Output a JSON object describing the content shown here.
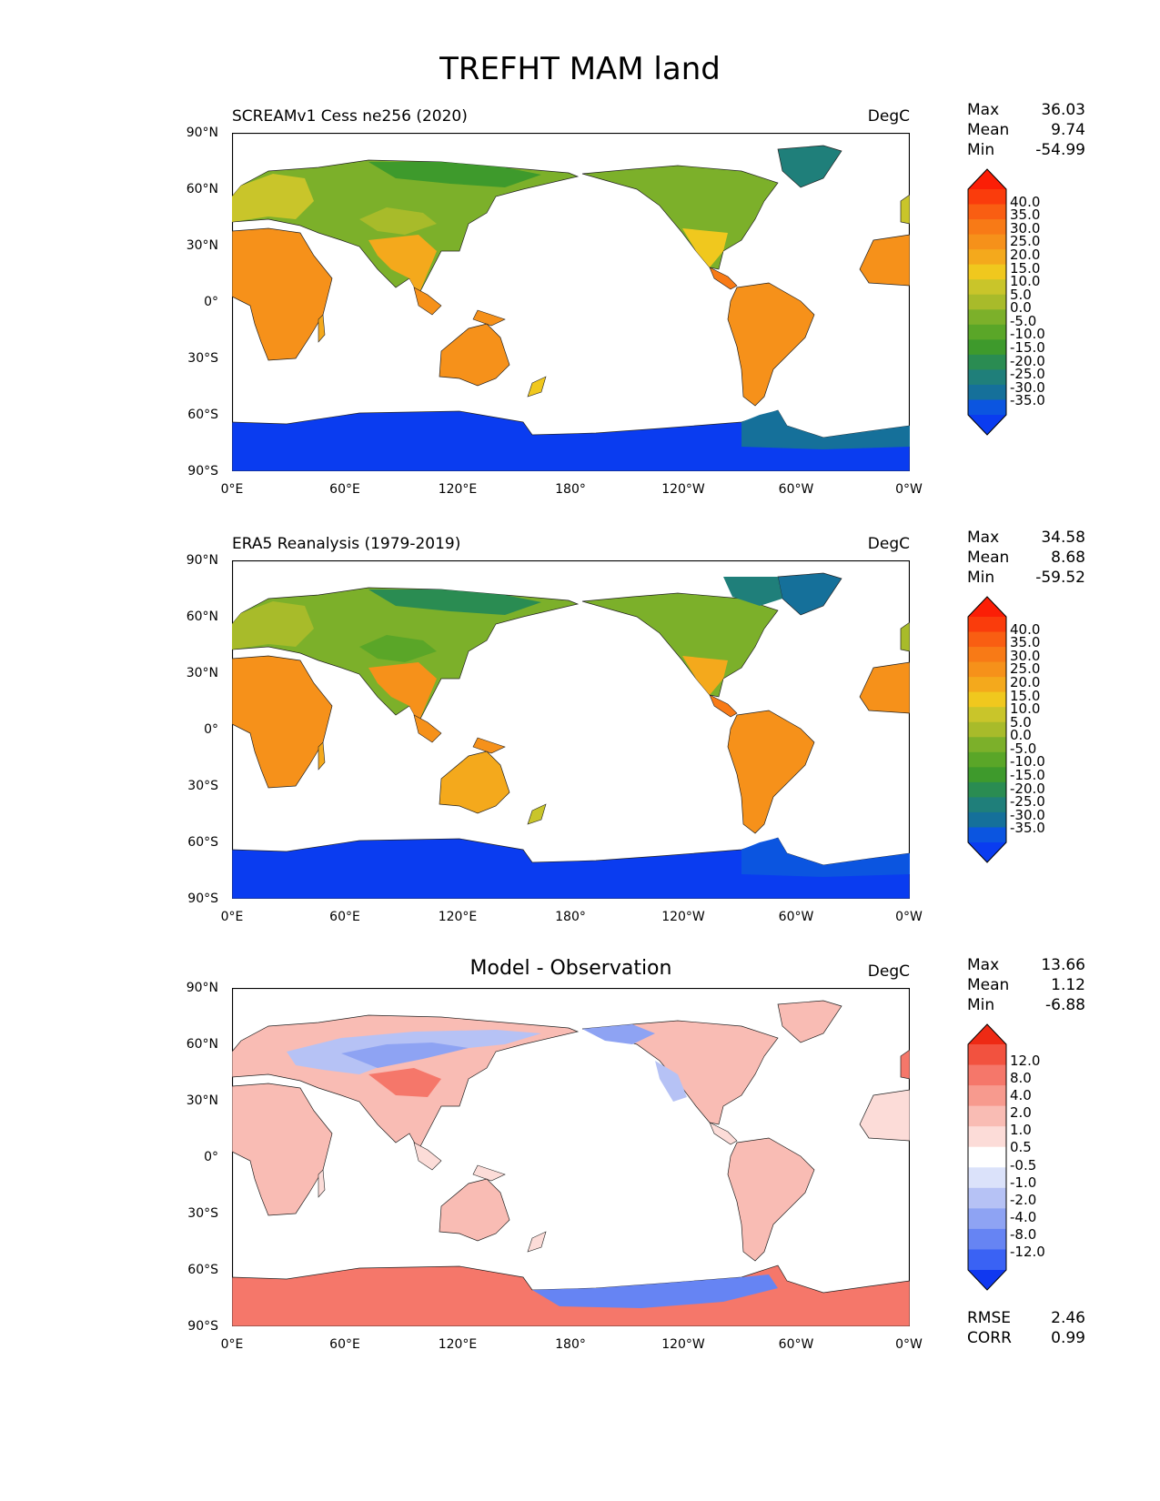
{
  "title": "TREFHT MAM land",
  "x_ticks": [
    "0°E",
    "60°E",
    "120°E",
    "180°",
    "120°W",
    "60°W",
    "0°W"
  ],
  "y_ticks": [
    "90°N",
    "60°N",
    "30°N",
    "0°",
    "30°S",
    "60°S",
    "90°S"
  ],
  "panels": [
    {
      "title": "SCREAMv1 Cess ne256 (2020)",
      "units": "DegC",
      "stats": [
        {
          "label": "Max",
          "value": "36.03"
        },
        {
          "label": "Mean",
          "value": "9.74"
        },
        {
          "label": "Min",
          "value": "-54.99"
        }
      ],
      "colorbar_levels": [
        "40.0",
        "35.0",
        "30.0",
        "25.0",
        "20.0",
        "15.0",
        "10.0",
        "5.0",
        "0.0",
        "-5.0",
        "-10.0",
        "-15.0",
        "-20.0",
        "-25.0",
        "-30.0",
        "-35.0"
      ]
    },
    {
      "title": "ERA5 Reanalysis (1979-2019)",
      "units": "DegC",
      "stats": [
        {
          "label": "Max",
          "value": "34.58"
        },
        {
          "label": "Mean",
          "value": "8.68"
        },
        {
          "label": "Min",
          "value": "-59.52"
        }
      ],
      "colorbar_levels": [
        "40.0",
        "35.0",
        "30.0",
        "25.0",
        "20.0",
        "15.0",
        "10.0",
        "5.0",
        "0.0",
        "-5.0",
        "-10.0",
        "-15.0",
        "-20.0",
        "-25.0",
        "-30.0",
        "-35.0"
      ]
    },
    {
      "title": "Model - Observation",
      "units": "DegC",
      "stats": [
        {
          "label": "Max",
          "value": "13.66"
        },
        {
          "label": "Mean",
          "value": "1.12"
        },
        {
          "label": "Min",
          "value": "-6.88"
        }
      ],
      "colorbar_levels": [
        "12.0",
        "8.0",
        "4.0",
        "2.0",
        "1.0",
        "0.5",
        "-0.5",
        "-1.0",
        "-2.0",
        "-4.0",
        "-8.0",
        "-12.0"
      ]
    }
  ],
  "bottom_stats": [
    {
      "label": "RMSE",
      "value": "2.46"
    },
    {
      "label": "CORR",
      "value": "0.99"
    }
  ],
  "colors": {
    "temp_scale": [
      "#0a3cf0",
      "#0b55e0",
      "#15709a",
      "#1f7f7a",
      "#2a8c52",
      "#3e9a2c",
      "#5aa628",
      "#7cb02a",
      "#a8bb2a",
      "#c9c52a",
      "#f0c81e",
      "#f4a91c",
      "#f6911a",
      "#f87a16",
      "#f95e12",
      "#fa3c0c",
      "#fb1e06"
    ],
    "diff_scale": [
      "#1038f0",
      "#3a62f4",
      "#6684f3",
      "#8ea3f3",
      "#b6c2f5",
      "#dbe2fa",
      "#ffffff",
      "#fcdcd8",
      "#f9bcb4",
      "#f79a8e",
      "#f5776a",
      "#f2523f",
      "#ee2a14"
    ]
  }
}
